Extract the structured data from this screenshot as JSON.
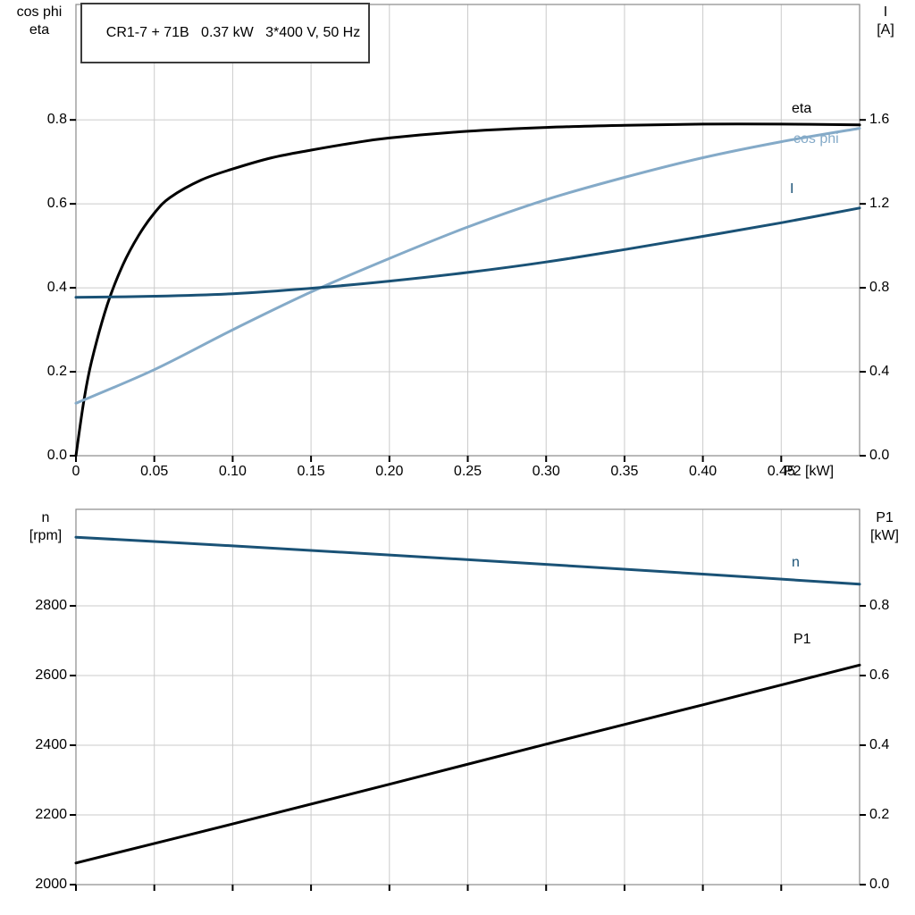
{
  "colors": {
    "grid": "#cbcbcb",
    "frame": "#8a8a8a",
    "tick": "#000000",
    "black": "#000000",
    "dark_blue": "#1a5276",
    "light_blue": "#84aac8"
  },
  "chart_data": [
    {
      "type": "line",
      "title": "CR1-7 + 71B   0.37 kW   3*400 V, 50 Hz",
      "x_axis": {
        "label": "P2 [kW]",
        "min": 0,
        "max": 0.5,
        "ticks": [
          0,
          0.05,
          0.1,
          0.15,
          0.2,
          0.25,
          0.3,
          0.35,
          0.4,
          0.45
        ],
        "tick_labels": [
          "0",
          "0.05",
          "0.10",
          "0.15",
          "0.20",
          "0.25",
          "0.30",
          "0.35",
          "0.40",
          "0.45"
        ]
      },
      "y_left": {
        "label_lines": [
          "cos phi",
          "eta"
        ],
        "min": 0,
        "max": 1.075,
        "ticks": [
          0,
          0.2,
          0.4,
          0.6,
          0.8
        ],
        "tick_labels": [
          "0.0",
          "0.2",
          "0.4",
          "0.6",
          "0.8"
        ]
      },
      "y_right": {
        "label_lines": [
          "I",
          "[A]"
        ],
        "min": 0,
        "max": 2.15,
        "ticks": [
          0,
          0.4,
          0.8,
          1.2,
          1.6
        ],
        "tick_labels": [
          "0.0",
          "0.4",
          "0.8",
          "1.2",
          "1.6"
        ]
      },
      "legend_position": "right-inline",
      "grid": true,
      "series": [
        {
          "name": "eta",
          "label": "eta",
          "axis": "left",
          "color": "#000000",
          "width": 3,
          "x": [
            0,
            0.005,
            0.01,
            0.02,
            0.03,
            0.04,
            0.05,
            0.06,
            0.08,
            0.1,
            0.125,
            0.15,
            0.175,
            0.2,
            0.25,
            0.3,
            0.35,
            0.4,
            0.45,
            0.5
          ],
          "y": [
            0,
            0.13,
            0.225,
            0.36,
            0.455,
            0.525,
            0.578,
            0.615,
            0.657,
            0.683,
            0.71,
            0.728,
            0.744,
            0.757,
            0.773,
            0.782,
            0.787,
            0.79,
            0.79,
            0.788
          ]
        },
        {
          "name": "cos-phi",
          "label": "cos phi",
          "axis": "left",
          "color": "#84aac8",
          "width": 3,
          "x": [
            0,
            0.05,
            0.1,
            0.15,
            0.2,
            0.25,
            0.3,
            0.35,
            0.4,
            0.45,
            0.5
          ],
          "y": [
            0.125,
            0.205,
            0.3,
            0.39,
            0.47,
            0.545,
            0.61,
            0.663,
            0.71,
            0.748,
            0.78
          ]
        },
        {
          "name": "current",
          "label": "I",
          "axis": "right",
          "color": "#1a5276",
          "width": 3,
          "x": [
            0,
            0.05,
            0.1,
            0.15,
            0.2,
            0.25,
            0.3,
            0.35,
            0.4,
            0.45,
            0.5
          ],
          "y": [
            0.755,
            0.76,
            0.772,
            0.798,
            0.832,
            0.873,
            0.923,
            0.982,
            1.045,
            1.11,
            1.18
          ]
        }
      ]
    },
    {
      "type": "line",
      "title": "",
      "x_axis": {
        "label": "",
        "min": 0,
        "max": 0.5,
        "ticks": [
          0,
          0.05,
          0.1,
          0.15,
          0.2,
          0.25,
          0.3,
          0.35,
          0.4,
          0.45
        ],
        "tick_labels": []
      },
      "y_left": {
        "label_lines": [
          "n",
          "[rpm]"
        ],
        "min": 2000,
        "max": 3077,
        "ticks": [
          2000,
          2200,
          2400,
          2600,
          2800
        ],
        "tick_labels": [
          "2000",
          "2200",
          "2400",
          "2600",
          "2800"
        ]
      },
      "y_right": {
        "label_lines": [
          "P1",
          "[kW]"
        ],
        "min": 0,
        "max": 1.077,
        "ticks": [
          0,
          0.2,
          0.4,
          0.6,
          0.8
        ],
        "tick_labels": [
          "0.0",
          "0.2",
          "0.4",
          "0.6",
          "0.8"
        ]
      },
      "legend_position": "right-inline",
      "grid": true,
      "series": [
        {
          "name": "n",
          "label": "n",
          "axis": "left",
          "color": "#1a5276",
          "width": 3,
          "x": [
            0,
            0.1,
            0.2,
            0.3,
            0.4,
            0.5
          ],
          "y": [
            2997,
            2972,
            2946,
            2919,
            2891,
            2862
          ]
        },
        {
          "name": "p1",
          "label": "P1",
          "axis": "right",
          "color": "#000000",
          "width": 3,
          "x": [
            0,
            0.1,
            0.2,
            0.3,
            0.4,
            0.5
          ],
          "y": [
            0.062,
            0.174,
            0.288,
            0.403,
            0.516,
            0.63
          ]
        }
      ]
    }
  ]
}
